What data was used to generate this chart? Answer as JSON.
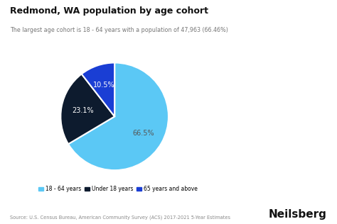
{
  "title": "Redmond, WA population by age cohort",
  "subtitle": "The largest age cohort is 18 - 64 years with a population of 47,963 (66.46%)",
  "slices": [
    66.5,
    23.1,
    10.5
  ],
  "labels": [
    "18 - 64 years",
    "Under 18 years",
    "65 years and above"
  ],
  "colors": [
    "#5bc8f5",
    "#0d1b2e",
    "#1a3ed4"
  ],
  "autopct_labels": [
    "66.5%",
    "23.1%",
    "10.5%"
  ],
  "startangle": 90,
  "source": "Source: U.S. Census Bureau, American Community Survey (ACS) 2017-2021 5-Year Estimates",
  "branding": "Neilsberg",
  "background_color": "#ffffff",
  "autopct_colors": [
    "#555555",
    "#ffffff",
    "#ffffff"
  ],
  "label_r": [
    0.62,
    0.6,
    0.62
  ]
}
